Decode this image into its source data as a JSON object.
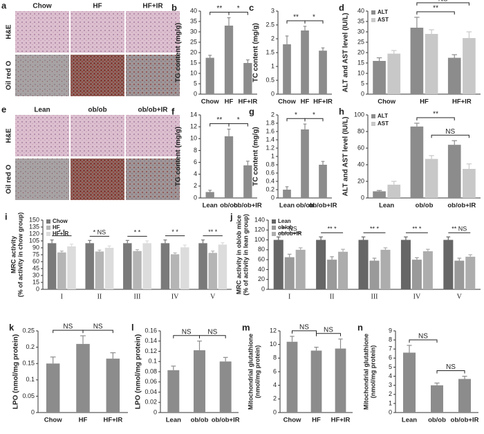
{
  "figures": [
    {
      "label": "a",
      "columns": [
        "Chow",
        "HF",
        "HF+IR"
      ],
      "rows": [
        "H&E",
        "Oil red O"
      ]
    },
    {
      "label": "e",
      "columns": [
        "Lean",
        "ob/ob",
        "ob/ob+IR"
      ],
      "rows": [
        "H&E",
        "Oil red O"
      ]
    }
  ],
  "chart_data": [
    {
      "type": "bar",
      "label": "b",
      "ylabel": "TG content (mg/g)",
      "categories": [
        "Chow",
        "HF",
        "HF+IR"
      ],
      "values": [
        17.5,
        33,
        15
      ],
      "errors": [
        1.2,
        3.8,
        1.5
      ],
      "color": "#8c8c8c",
      "ylim": [
        0,
        40
      ],
      "yticks": [
        0,
        5,
        10,
        15,
        20,
        25,
        30,
        35,
        40
      ],
      "annotations": [
        {
          "text": "**",
          "between": [
            "Chow",
            "HF"
          ]
        },
        {
          "text": "*",
          "between": [
            "HF",
            "HF+IR"
          ]
        }
      ]
    },
    {
      "type": "bar",
      "label": "c",
      "ylabel": "TC content (mg/g)",
      "categories": [
        "Chow",
        "HF",
        "HF+IR"
      ],
      "values": [
        1.8,
        2.3,
        1.57
      ],
      "errors": [
        0.3,
        0.15,
        0.1
      ],
      "color": "#8c8c8c",
      "ylim": [
        0,
        3
      ],
      "yticks": [
        0,
        0.5,
        1,
        1.5,
        2,
        2.5,
        3
      ],
      "annotations": [
        {
          "text": "**",
          "between": [
            "Chow",
            "HF"
          ]
        },
        {
          "text": "*",
          "between": [
            "HF",
            "HF+IR"
          ]
        }
      ]
    },
    {
      "type": "bar",
      "label": "d",
      "ylabel": "ALT and AST level (IU/L)",
      "categories": [
        "Chow",
        "HF",
        "HF+IR"
      ],
      "ylim": [
        0,
        40
      ],
      "yticks": [
        0,
        5,
        10,
        15,
        20,
        25,
        30,
        35,
        40
      ],
      "legend": "upper left",
      "series": [
        {
          "name": "ALT",
          "color": "#8c8c8c",
          "values": [
            16,
            32,
            17.5
          ],
          "errors": [
            1.5,
            5,
            1.5
          ]
        },
        {
          "name": "AST",
          "color": "#c8c8c8",
          "values": [
            19.5,
            29,
            27
          ],
          "errors": [
            1.5,
            2,
            3
          ]
        }
      ],
      "annotations": [
        {
          "text": "**",
          "between": [
            [
              "HF",
              "ALT"
            ],
            [
              "HF+IR",
              "ALT"
            ]
          ]
        },
        {
          "text": "NS",
          "between": [
            [
              "HF",
              "ALT"
            ],
            [
              "HF+IR",
              "AST"
            ]
          ]
        }
      ]
    },
    {
      "type": "bar",
      "label": "f",
      "ylabel": "TG content (mg/g)",
      "categories": [
        "Lean",
        "ob/ob",
        "ob/ob+IR"
      ],
      "values": [
        1,
        10.4,
        5.5
      ],
      "errors": [
        0.3,
        1.2,
        0.7
      ],
      "color": "#8c8c8c",
      "ylim": [
        0,
        14
      ],
      "yticks": [
        0,
        2,
        4,
        6,
        8,
        10,
        12,
        14
      ],
      "annotations": [
        {
          "text": "**",
          "between": [
            "Lean",
            "ob/ob"
          ]
        },
        {
          "text": "*",
          "between": [
            "ob/ob",
            "ob/ob+IR"
          ]
        }
      ]
    },
    {
      "type": "bar",
      "label": "g",
      "ylabel": "TC content (mg/g)",
      "categories": [
        "Lean",
        "ob/ob",
        "ob/ob+IR"
      ],
      "values": [
        0.2,
        1.65,
        0.8
      ],
      "errors": [
        0.07,
        0.13,
        0.08
      ],
      "color": "#8c8c8c",
      "ylim": [
        0,
        2
      ],
      "yticks": [
        0,
        0.2,
        0.4,
        0.6,
        0.8,
        1,
        1.2,
        1.4,
        1.6,
        1.8,
        2
      ],
      "annotations": [
        {
          "text": "*",
          "between": [
            "Lean",
            "ob/ob"
          ]
        },
        {
          "text": "*",
          "between": [
            "ob/ob",
            "ob/ob+IR"
          ]
        }
      ]
    },
    {
      "type": "bar",
      "label": "h",
      "ylabel": "ALT and AST level (IU/L)",
      "categories": [
        "Lean",
        "ob/ob",
        "ob/ob+IR"
      ],
      "ylim": [
        0,
        100
      ],
      "yticks": [
        0,
        20,
        40,
        60,
        80,
        100
      ],
      "legend": "upper left",
      "series": [
        {
          "name": "ALT",
          "color": "#8c8c8c",
          "values": [
            8,
            86,
            64
          ],
          "errors": [
            1,
            4,
            5
          ]
        },
        {
          "name": "AST",
          "color": "#c8c8c8",
          "values": [
            16,
            47,
            35
          ],
          "errors": [
            4,
            4,
            6
          ]
        }
      ],
      "annotations": [
        {
          "text": "NS",
          "between": [
            [
              "ob/ob",
              "AST"
            ],
            [
              "ob/ob+IR",
              "AST"
            ]
          ]
        },
        {
          "text": "**",
          "between": [
            [
              "ob/ob",
              "ALT"
            ],
            [
              "ob/ob+IR",
              "ALT"
            ]
          ]
        }
      ]
    },
    {
      "type": "bar",
      "label": "i",
      "ylabel": [
        "MRC activity",
        "(% of activity in chow group)"
      ],
      "categories": [
        "I",
        "II",
        "III",
        "IV",
        "V"
      ],
      "ylim": [
        0,
        150
      ],
      "yticks": [
        0,
        15,
        30,
        45,
        60,
        75,
        90,
        105,
        120,
        135,
        150
      ],
      "legend": "upper left",
      "series": [
        {
          "name": "Chow",
          "color": "#7a7a7a",
          "values": [
            100,
            100,
            100,
            100,
            100
          ],
          "errors": [
            7,
            6,
            6,
            7,
            7
          ]
        },
        {
          "name": "HF",
          "color": "#b5b5b5",
          "values": [
            80,
            82,
            83,
            76,
            79
          ],
          "errors": [
            3,
            3,
            3,
            3,
            4
          ]
        },
        {
          "name": "HF+IR",
          "color": "#dcdcdc",
          "values": [
            93,
            90,
            100,
            91,
            97
          ],
          "errors": [
            5,
            4,
            5,
            5,
            4
          ]
        }
      ],
      "group_annotations": [
        "* *",
        "* NS",
        "* *",
        "* *",
        "** *"
      ]
    },
    {
      "type": "bar",
      "label": "j",
      "ylabel": [
        "MRC activity in ob/ob mice",
        "(% of activity in lean group)"
      ],
      "categories": [
        "I",
        "II",
        "III",
        "IV",
        "V"
      ],
      "ylim": [
        0,
        140
      ],
      "yticks": [
        0,
        20,
        40,
        60,
        80,
        100,
        120,
        140
      ],
      "legend": "upper left",
      "series": [
        {
          "name": "Lean",
          "color": "#666666",
          "values": [
            100,
            100,
            100,
            100,
            100
          ],
          "errors": [
            6,
            6,
            6,
            6,
            6
          ]
        },
        {
          "name": "ob/ob",
          "color": "#9a9a9a",
          "values": [
            65,
            60,
            58,
            60,
            58
          ],
          "errors": [
            6,
            6,
            5,
            4,
            5
          ]
        },
        {
          "name": "ob/ob+IR",
          "color": "#adadad",
          "values": [
            80,
            76,
            80,
            77,
            66
          ],
          "errors": [
            4,
            5,
            4,
            4,
            4
          ]
        }
      ],
      "group_annotations": [
        "** NS",
        "** *",
        "** *",
        "** *",
        "** NS"
      ]
    },
    {
      "type": "bar",
      "label": "k",
      "ylabel": "LPO (nmol/mg protein)",
      "categories": [
        "Chow",
        "HF",
        "HF+IR"
      ],
      "values": [
        0.15,
        0.21,
        0.165
      ],
      "errors": [
        0.02,
        0.025,
        0.018
      ],
      "color": "#8c8c8c",
      "ylim": [
        0,
        0.25
      ],
      "yticks": [
        0,
        0.05,
        0.1,
        0.15,
        0.2,
        0.25
      ],
      "annotations": [
        {
          "text": "NS",
          "between": [
            "Chow",
            "HF"
          ]
        },
        {
          "text": "NS",
          "between": [
            "HF",
            "HF+IR"
          ]
        }
      ]
    },
    {
      "type": "bar",
      "label": "l",
      "ylabel": "LPO (nmol/mg protein)",
      "categories": [
        "Lean",
        "ob/ob",
        "ob/ob+IR"
      ],
      "values": [
        0.083,
        0.122,
        0.1
      ],
      "errors": [
        0.008,
        0.018,
        0.008
      ],
      "color": "#8c8c8c",
      "ylim": [
        0,
        0.16
      ],
      "yticks": [
        0,
        0.02,
        0.04,
        0.06,
        0.08,
        0.1,
        0.12,
        0.14,
        0.16
      ],
      "annotations": [
        {
          "text": "NS",
          "between": [
            "Lean",
            "ob/ob"
          ]
        },
        {
          "text": "NS",
          "between": [
            "ob/ob",
            "ob/ob+IR"
          ]
        }
      ]
    },
    {
      "type": "bar",
      "label": "m",
      "ylabel": [
        "Mitochondrial glutathione",
        "(nmol/mg protein)"
      ],
      "categories": [
        "Chow",
        "HF",
        "HF+IR"
      ],
      "values": [
        10.4,
        9.1,
        9.4
      ],
      "errors": [
        0.8,
        0.5,
        1.4
      ],
      "color": "#8c8c8c",
      "ylim": [
        0,
        12
      ],
      "yticks": [
        0,
        2,
        4,
        6,
        8,
        10,
        12
      ],
      "annotations": [
        {
          "text": "NS",
          "between": [
            "Chow",
            "HF"
          ]
        },
        {
          "text": "NS",
          "between": [
            "HF",
            "HF+IR"
          ]
        }
      ]
    },
    {
      "type": "bar",
      "label": "n",
      "ylabel": [
        "Mitochondrial glutathione",
        "(nmol/mg protein)"
      ],
      "categories": [
        "Lean",
        "ob/ob",
        "ob/ob+IR"
      ],
      "values": [
        6.6,
        3.0,
        3.7
      ],
      "errors": [
        0.8,
        0.25,
        0.3
      ],
      "color": "#8c8c8c",
      "ylim": [
        0,
        9
      ],
      "yticks": [
        0,
        1,
        2,
        3,
        4,
        5,
        6,
        7,
        8,
        9
      ],
      "annotations": [
        {
          "text": "NS",
          "between": [
            "Lean",
            "ob/ob"
          ]
        },
        {
          "text": "NS",
          "between": [
            "ob/ob",
            "ob/ob+IR"
          ]
        }
      ]
    }
  ]
}
